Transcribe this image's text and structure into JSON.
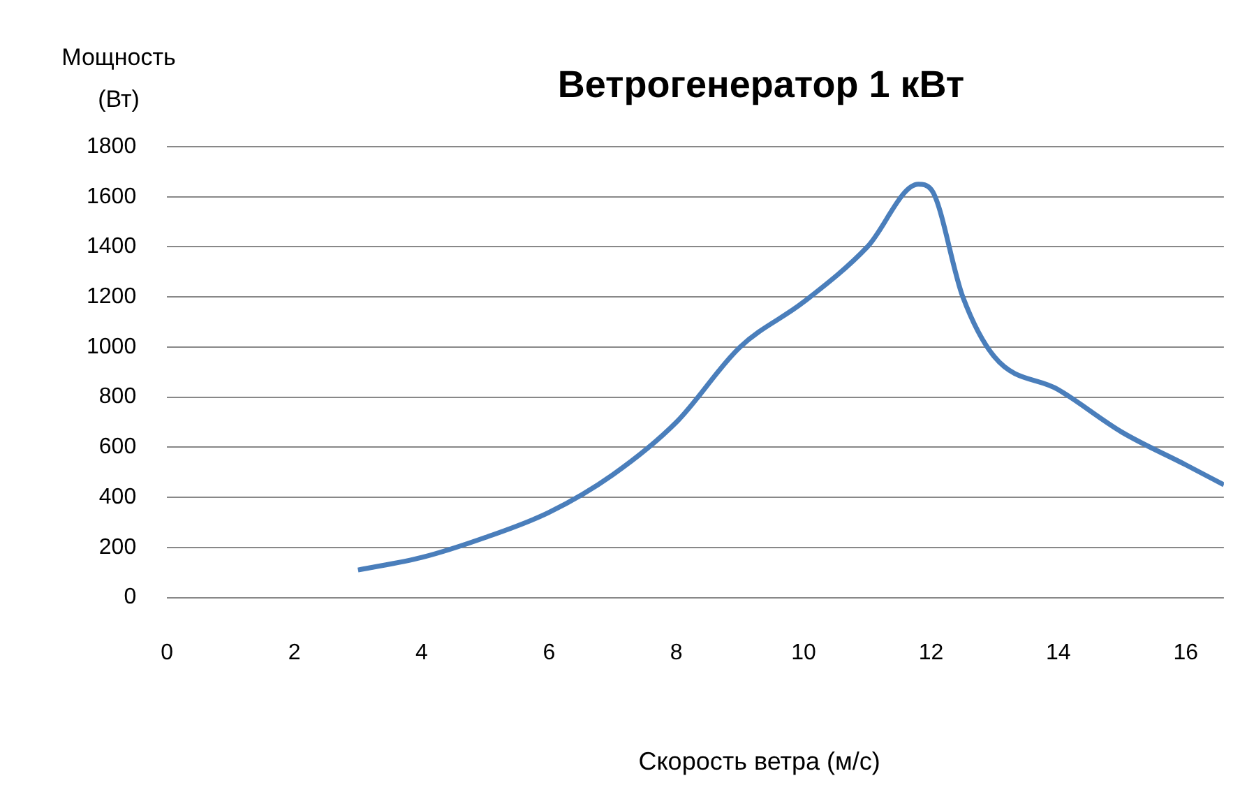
{
  "chart_data": {
    "type": "line",
    "title": "Ветрогенератор 1 кВт",
    "xlabel": "Скорость ветра (м/с)",
    "ylabel": "Мощность\n(Вт)",
    "x": [
      3,
      4,
      5,
      6,
      7,
      8,
      9,
      10,
      11,
      11.8,
      12,
      12.5,
      13,
      14,
      15,
      16,
      16.6
    ],
    "series": [
      {
        "color": "#4a7ebb",
        "values": [
          110,
          160,
          240,
          340,
          490,
          700,
          1000,
          1180,
          1400,
          1650,
          1630,
          1200,
          960,
          830,
          660,
          530,
          450
        ]
      }
    ],
    "xlim": [
      0,
      16.6
    ],
    "xticks": [
      0,
      2,
      4,
      6,
      8,
      10,
      12,
      14,
      16
    ],
    "ylim": [
      0,
      1800
    ],
    "yticks": [
      0,
      200,
      400,
      600,
      800,
      1000,
      1200,
      1400,
      1600,
      1800
    ],
    "grid": "y"
  }
}
